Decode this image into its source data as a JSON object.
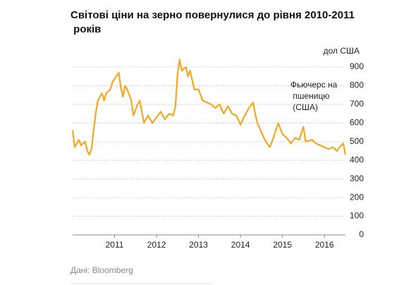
{
  "chart_data": {
    "type": "line",
    "title": "Світові ціни на зерно повернулися до рівня 2010-2011 років",
    "y_unit": "дол США",
    "annotation": "Фьючерс на пшеницю (США)",
    "source": "Дані: Bloomberg",
    "x": [
      2010.0,
      2010.05,
      2010.1,
      2010.15,
      2010.2,
      2010.3,
      2010.35,
      2010.4,
      2010.45,
      2010.5,
      2010.55,
      2010.6,
      2010.7,
      2010.75,
      2010.8,
      2010.9,
      2010.95,
      2011.1,
      2011.15,
      2011.2,
      2011.25,
      2011.3,
      2011.4,
      2011.45,
      2011.55,
      2011.6,
      2011.7,
      2011.8,
      2011.9,
      2012.0,
      2012.1,
      2012.2,
      2012.3,
      2012.4,
      2012.45,
      2012.5,
      2012.55,
      2012.6,
      2012.7,
      2012.75,
      2012.8,
      2012.9,
      2013.0,
      2013.1,
      2013.2,
      2013.3,
      2013.4,
      2013.5,
      2013.6,
      2013.7,
      2013.8,
      2013.9,
      2014.0,
      2014.1,
      2014.2,
      2014.3,
      2014.35,
      2014.4,
      2014.5,
      2014.6,
      2014.7,
      2014.8,
      2014.9,
      2015.0,
      2015.1,
      2015.2,
      2015.3,
      2015.4,
      2015.5,
      2015.55,
      2015.7,
      2015.8,
      2015.9,
      2016.0,
      2016.1,
      2016.2,
      2016.3,
      2016.4,
      2016.45,
      2016.5
    ],
    "series": [
      {
        "name": "Фьючерс на пшеницю (США)",
        "color": "#f5a623",
        "values": [
          560,
          470,
          490,
          510,
          480,
          500,
          450,
          430,
          460,
          560,
          650,
          720,
          760,
          720,
          760,
          780,
          820,
          870,
          790,
          740,
          800,
          780,
          720,
          640,
          700,
          720,
          600,
          640,
          600,
          630,
          660,
          620,
          650,
          640,
          690,
          860,
          940,
          880,
          900,
          850,
          880,
          780,
          780,
          720,
          710,
          700,
          680,
          700,
          650,
          690,
          650,
          640,
          590,
          640,
          680,
          710,
          650,
          600,
          550,
          500,
          470,
          530,
          600,
          540,
          520,
          490,
          520,
          510,
          580,
          500,
          510,
          490,
          480,
          470,
          460,
          470,
          450,
          480,
          490,
          430
        ]
      }
    ],
    "xlim": [
      2010.0,
      2016.5
    ],
    "xticks": [
      2011,
      2012,
      2013,
      2014,
      2015,
      2016
    ],
    "ylim": [
      0,
      900
    ],
    "yticks": [
      0,
      100,
      200,
      300,
      400,
      500,
      600,
      700,
      800,
      900
    ],
    "grid": true
  }
}
